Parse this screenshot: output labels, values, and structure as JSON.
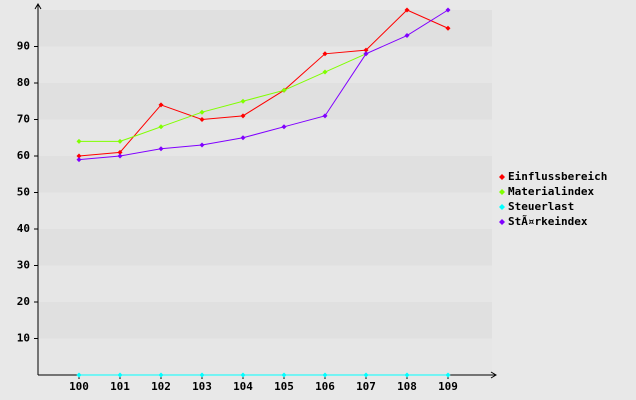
{
  "chart_data": {
    "type": "line",
    "categories": [
      "100",
      "101",
      "102",
      "103",
      "104",
      "105",
      "106",
      "107",
      "108",
      "109"
    ],
    "series": [
      {
        "name": "Einflussbereich",
        "color": "#ff0000",
        "values": [
          60,
          61,
          74,
          70,
          71,
          78,
          88,
          89,
          100,
          95
        ]
      },
      {
        "name": "Materialindex",
        "color": "#80ff00",
        "values": [
          64,
          64,
          68,
          72,
          75,
          78,
          83,
          88,
          null,
          null
        ]
      },
      {
        "name": "Steuerlast",
        "color": "#00ffff",
        "values": [
          0,
          0,
          0,
          0,
          0,
          0,
          0,
          0,
          0,
          0
        ]
      },
      {
        "name": "StÃ¤rkeindex",
        "color": "#8000ff",
        "values": [
          59,
          60,
          62,
          63,
          65,
          68,
          71,
          88,
          93,
          100
        ]
      }
    ],
    "ylim": [
      0,
      100
    ],
    "yticks": [
      10,
      20,
      30,
      40,
      50,
      60,
      70,
      80,
      90
    ],
    "grid": true,
    "legend": "right"
  }
}
